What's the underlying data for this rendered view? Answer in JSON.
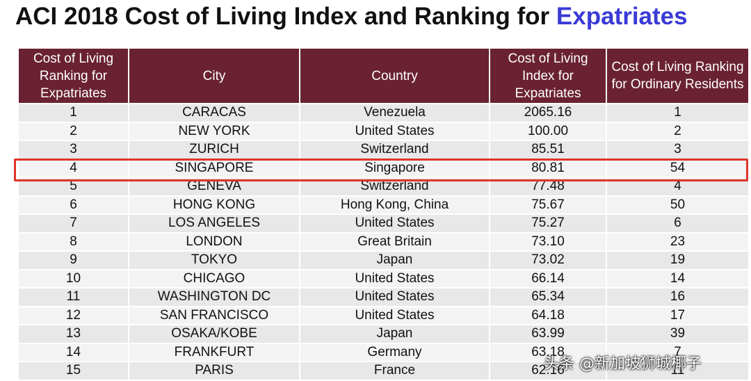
{
  "header": {
    "title": "ACI 2018 Cost of Living Index and Ranking for",
    "title_highlight": "Expatriates"
  },
  "table": {
    "columns": [
      "Cost of Living Ranking for Expatriates",
      "City",
      "Country",
      "Cost of Living Index for Expatriates",
      "Cost of Living Ranking for Ordinary Residents"
    ],
    "rows": [
      [
        "1",
        "CARACAS",
        "Venezuela",
        "2065.16",
        "1"
      ],
      [
        "2",
        "NEW YORK",
        "United States",
        "100.00",
        "2"
      ],
      [
        "3",
        "ZURICH",
        "Switzerland",
        "85.51",
        "3"
      ],
      [
        "4",
        "SINGAPORE",
        "Singapore",
        "80.81",
        "54"
      ],
      [
        "5",
        "GENEVA",
        "Switzerland",
        "77.48",
        "4"
      ],
      [
        "6",
        "HONG KONG",
        "Hong Kong, China",
        "75.67",
        "50"
      ],
      [
        "7",
        "LOS ANGELES",
        "United States",
        "75.27",
        "6"
      ],
      [
        "8",
        "LONDON",
        "Great Britain",
        "73.10",
        "23"
      ],
      [
        "9",
        "TOKYO",
        "Japan",
        "73.02",
        "19"
      ],
      [
        "10",
        "CHICAGO",
        "United States",
        "66.14",
        "14"
      ],
      [
        "11",
        "WASHINGTON DC",
        "United States",
        "65.34",
        "16"
      ],
      [
        "12",
        "SAN FRANCISCO",
        "United States",
        "64.18",
        "17"
      ],
      [
        "13",
        "OSAKA/KOBE",
        "Japan",
        "63.99",
        "39"
      ],
      [
        "14",
        "FRANKFURT",
        "Germany",
        "63.18",
        "7"
      ],
      [
        "15",
        "PARIS",
        "France",
        "62.16",
        "11"
      ]
    ]
  },
  "watermark": "头条 @新加坡狮城椰子"
}
